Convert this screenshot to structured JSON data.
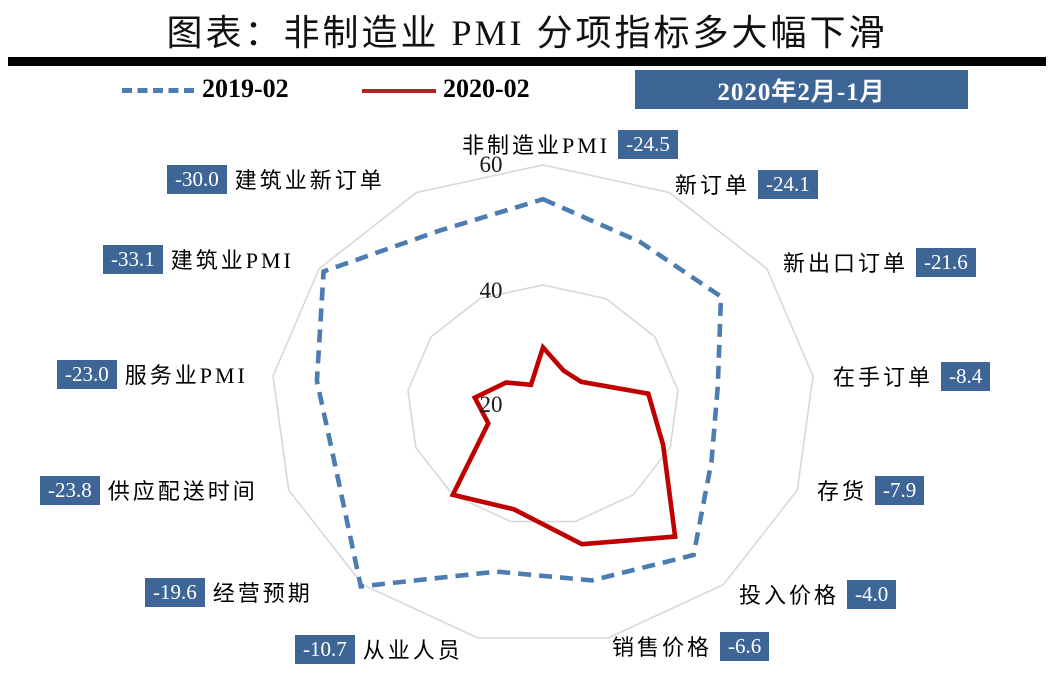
{
  "header": {
    "title": "图表：非制造业 PMI 分项指标多大幅下滑"
  },
  "legend": {
    "period_badge": "2020年2月-1月"
  },
  "colors": {
    "series_2019": "#4d7cb0",
    "series_2020": "#c00000",
    "badge_bg": "#3d6696",
    "grid": "#d8d8d8",
    "rule": "#000000"
  },
  "chart_data": {
    "type": "radar",
    "title": "图表：非制造业 PMI 分项指标多大幅下滑",
    "categories": [
      "非制造业PMI",
      "新订单",
      "新出口订单",
      "在手订单",
      "存货",
      "投入价格",
      "销售价格",
      "从业人员",
      "经营预期",
      "供应配送时间",
      "服务业PMI",
      "建筑业PMI",
      "建筑业新订单"
    ],
    "series": [
      {
        "name": "2019-02",
        "style": "dashed",
        "color": "#4d7cb0",
        "values": [
          54.3,
          50.7,
          51.8,
          45.9,
          46.5,
          53.4,
          50.1,
          48.6,
          60.4,
          52.4,
          53.5,
          59.2,
          52.8
        ]
      },
      {
        "name": "2020-02",
        "style": "solid",
        "color": "#c00000",
        "values": [
          29.6,
          26.5,
          26.8,
          35.6,
          38.9,
          49.3,
          43.9,
          37.9,
          40.0,
          28.6,
          30.1,
          26.6,
          23.8
        ]
      }
    ],
    "change_labels": [
      "-24.5",
      "-24.1",
      "-21.6",
      "-8.4",
      "-7.9",
      "-4.0",
      "-6.6",
      "-10.7",
      "-19.6",
      "-23.8",
      "-23.0",
      "-33.1",
      "-30.0"
    ],
    "change_period_label": "2020年2月-1月",
    "radial_axis": {
      "min": 20,
      "max": 60,
      "ticks": [
        20,
        40,
        60
      ]
    },
    "grid": "rings at 40 and 60, no spokes",
    "legend_position": "top"
  }
}
